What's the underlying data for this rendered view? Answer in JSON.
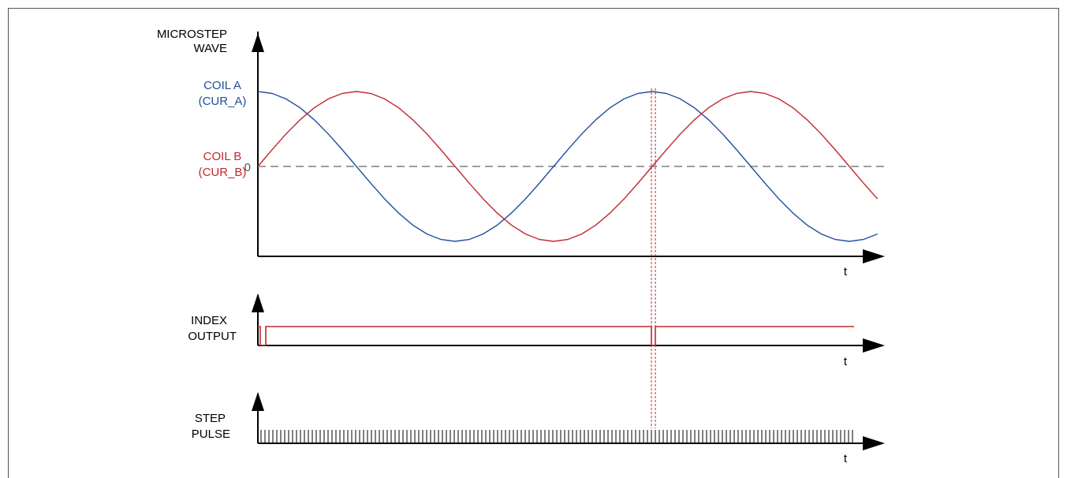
{
  "colors": {
    "coil_a": "#1f4e9c",
    "coil_b": "#c0282d",
    "axis": "#000000",
    "zero_line": "#7f7f7f",
    "frame": "#555555"
  },
  "microstep": {
    "label_line1": "MICROSTEP",
    "label_line2": "WAVE",
    "coil_a_line1": "COIL A",
    "coil_a_line2": "(CUR_A)",
    "coil_b_line1": "COIL B",
    "coil_b_line2": "(CUR_B)",
    "zero_label": "0",
    "t_label": "t"
  },
  "index": {
    "label_line1": "INDEX",
    "label_line2": "OUTPUT",
    "t_label": "t"
  },
  "step": {
    "label_line1": "STEP",
    "label_line2": "PULSE",
    "t_label": "t"
  }
}
